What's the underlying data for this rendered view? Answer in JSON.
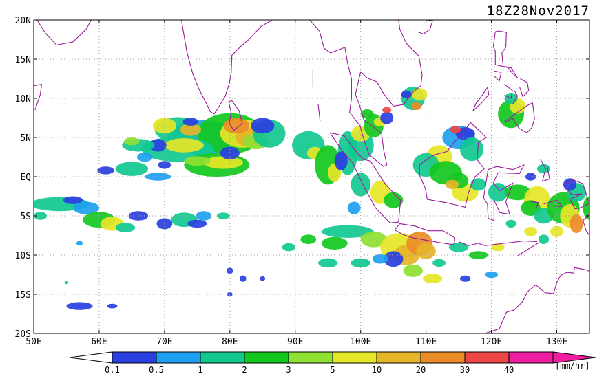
{
  "title": "18Z28Nov2017",
  "map": {
    "lon_range": [
      50,
      135
    ],
    "lat_range": [
      -20,
      20
    ],
    "lat_ticks": [
      {
        "value": 20,
        "label": "20N"
      },
      {
        "value": 15,
        "label": "15N"
      },
      {
        "value": 10,
        "label": "10N"
      },
      {
        "value": 5,
        "label": "5N"
      },
      {
        "value": 0,
        "label": "EQ"
      },
      {
        "value": -5,
        "label": "5S"
      },
      {
        "value": -10,
        "label": "10S"
      },
      {
        "value": -15,
        "label": "15S"
      },
      {
        "value": -20,
        "label": "20S"
      }
    ],
    "lon_ticks": [
      {
        "value": 50,
        "label": "50E"
      },
      {
        "value": 60,
        "label": "60E"
      },
      {
        "value": 70,
        "label": "70E"
      },
      {
        "value": 80,
        "label": "80E"
      },
      {
        "value": 90,
        "label": "90E"
      },
      {
        "value": 100,
        "label": "100E"
      },
      {
        "value": 110,
        "label": "110E"
      },
      {
        "value": 120,
        "label": "120E"
      },
      {
        "value": 130,
        "label": "130E"
      }
    ],
    "grid": "dotted",
    "coastline_color": "#9b1a9b"
  },
  "legend": {
    "unit": "[mm/hr]",
    "labels": [
      "0.1",
      "0.5",
      "1",
      "2",
      "3",
      "5",
      "10",
      "20",
      "30",
      "40"
    ],
    "colors": [
      "#2a3fe0",
      "#1e9ff0",
      "#10c890",
      "#12c81e",
      "#8ee032",
      "#e6e628",
      "#e6b428",
      "#eb8c28",
      "#ee4646",
      "#f01ea0"
    ],
    "under_color": "#ffffff",
    "over_color": "#f01ea0"
  }
}
